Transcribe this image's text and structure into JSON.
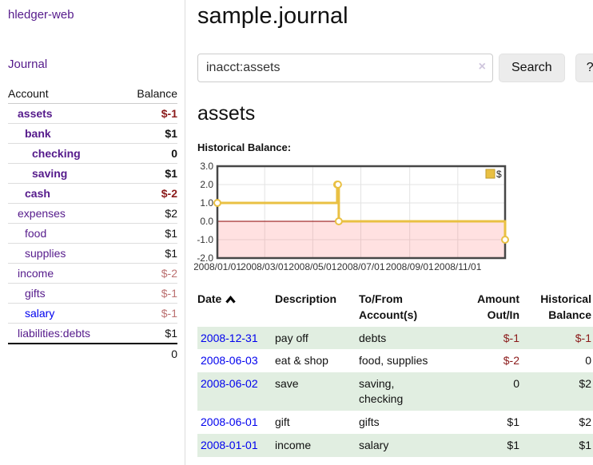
{
  "sidebar": {
    "brand": "hledger-web",
    "journal_link": "Journal",
    "accounts": {
      "col_account": "Account",
      "col_balance": "Balance",
      "rows": [
        {
          "name": "assets",
          "depth": 1,
          "bold": true,
          "link": "visited",
          "balance": "$-1",
          "balance_style": "neg-strong"
        },
        {
          "name": "bank",
          "depth": 2,
          "bold": true,
          "link": "visited",
          "balance": "$1",
          "balance_style": "strong"
        },
        {
          "name": "checking",
          "depth": 3,
          "bold": true,
          "link": "visited",
          "balance": "0",
          "balance_style": "strong"
        },
        {
          "name": "saving",
          "depth": 3,
          "bold": true,
          "link": "visited",
          "balance": "$1",
          "balance_style": "strong"
        },
        {
          "name": "cash",
          "depth": 2,
          "bold": true,
          "link": "visited",
          "balance": "$-2",
          "balance_style": "neg-strong"
        },
        {
          "name": "expenses",
          "depth": 1,
          "bold": false,
          "link": "visited",
          "balance": "$2",
          "balance_style": "plain"
        },
        {
          "name": "food",
          "depth": 2,
          "bold": false,
          "link": "visited",
          "balance": "$1",
          "balance_style": "plain"
        },
        {
          "name": "supplies",
          "depth": 2,
          "bold": false,
          "link": "visited",
          "balance": "$1",
          "balance_style": "plain"
        },
        {
          "name": "income",
          "depth": 1,
          "bold": false,
          "link": "visited",
          "balance": "$-2",
          "balance_style": "neg-muted"
        },
        {
          "name": "gifts",
          "depth": 2,
          "bold": false,
          "link": "visited",
          "balance": "$-1",
          "balance_style": "neg-muted"
        },
        {
          "name": "salary",
          "depth": 2,
          "bold": false,
          "link": "blue",
          "balance": "$-1",
          "balance_style": "neg-muted"
        },
        {
          "name": "liabilities:debts",
          "depth": 1,
          "bold": false,
          "link": "visited",
          "balance": "$1",
          "balance_style": "plain"
        }
      ],
      "total": "0"
    }
  },
  "main": {
    "title": "sample.journal",
    "search": {
      "value": "inacct:assets",
      "clear_icon": "×",
      "button_label": "Search",
      "help_label": "?"
    },
    "account_heading": "assets",
    "chart_label": "Historical Balance:"
  },
  "chart_data": {
    "type": "line",
    "title": "Historical Balance",
    "step": true,
    "series": [
      {
        "name": "$",
        "points": [
          [
            "2008-01-01",
            1
          ],
          [
            "2008-06-01",
            2
          ],
          [
            "2008-06-02",
            2
          ],
          [
            "2008-06-03",
            0
          ],
          [
            "2008-12-31",
            -1
          ]
        ]
      }
    ],
    "xlim": [
      "2008-01-01",
      "2008-12-31"
    ],
    "ylim": [
      -2,
      3
    ],
    "x_ticks": [
      "2008-01-01",
      "2008-03-01",
      "2008-05-01",
      "2008-07-01",
      "2008-09-01",
      "2008-11-01"
    ],
    "x_tick_labels": [
      "2008/01/01",
      "2008/03/01",
      "2008/05/01",
      "2008/07/01",
      "2008/09/01",
      "2008/11/01"
    ],
    "y_tick_labels": [
      "3.0",
      "2.0",
      "1.0",
      "0.0",
      "-1.0",
      "-2.0"
    ],
    "y_ticks": [
      3,
      2,
      1,
      0,
      -1,
      -2
    ],
    "grid": true,
    "legend": {
      "label": "$",
      "position": "top-right"
    },
    "negative_region_shaded": true,
    "colors": {
      "line": "#e9c043",
      "marker_fill": "#ffffff",
      "legend_box": "#e9c043",
      "zero_line": "#8b0000",
      "negative_fill": "rgba(255,90,90,0.18)",
      "border": "#474747",
      "grid": "#e3e3e3"
    }
  },
  "register": {
    "headers": [
      {
        "label": "Date",
        "align": "left",
        "sort": true
      },
      {
        "label": "Description",
        "align": "left"
      },
      {
        "label": "To/From\nAccount(s)",
        "align": "left"
      },
      {
        "label": "Amount\nOut/In",
        "align": "right"
      },
      {
        "label": "Historical\nBalance",
        "align": "right"
      }
    ],
    "rows": [
      {
        "date": "2008-12-31",
        "description": "pay off",
        "accounts": "debts",
        "amount": "$-1",
        "balance": "$-1"
      },
      {
        "date": "2008-06-03",
        "description": "eat & shop",
        "accounts": "food, supplies",
        "amount": "$-2",
        "balance": "0"
      },
      {
        "date": "2008-06-02",
        "description": "save",
        "accounts": "saving,\nchecking",
        "amount": "0",
        "balance": "$2"
      },
      {
        "date": "2008-06-01",
        "description": "gift",
        "accounts": "gifts",
        "amount": "$1",
        "balance": "$2"
      },
      {
        "date": "2008-01-01",
        "description": "income",
        "accounts": "salary",
        "amount": "$1",
        "balance": "$1"
      }
    ]
  }
}
